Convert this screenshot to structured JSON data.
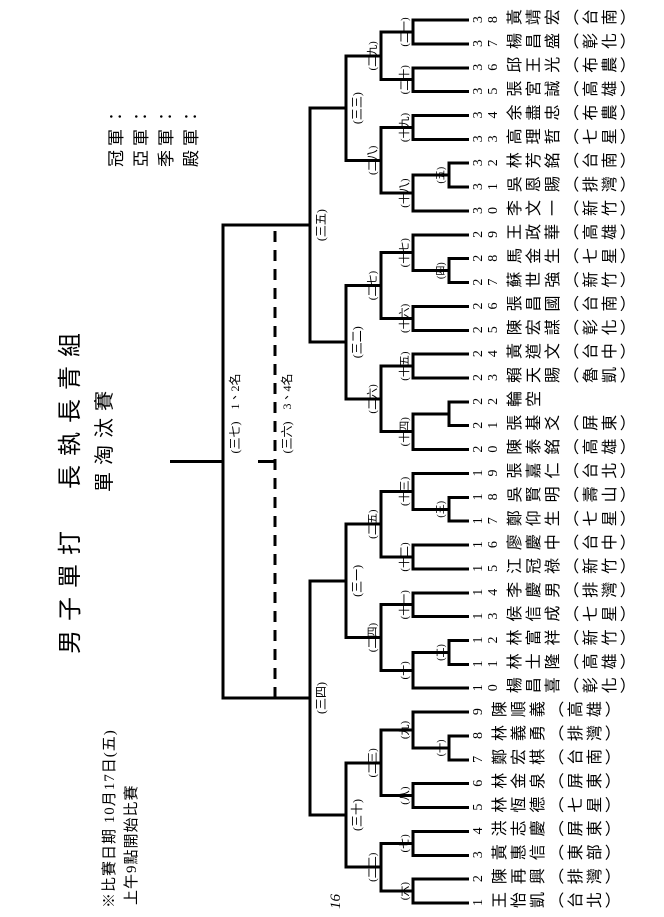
{
  "page": {
    "title": "男子單打　長執長青組",
    "subtitle": "單淘汰賽",
    "note_line1": "※比賽日期 10月17日(五)",
    "note_line2": "上午9點開始比賽",
    "page_number": "16",
    "results": [
      "冠軍：",
      "亞軍：",
      "季軍：",
      "殿軍："
    ]
  },
  "players": [
    {
      "no": 1,
      "name": "王怡凱",
      "club": "（台北）"
    },
    {
      "no": 2,
      "name": "陳再興",
      "club": "（排灣）"
    },
    {
      "no": 3,
      "name": "黃惠信",
      "club": "（東部）"
    },
    {
      "no": 4,
      "name": "洪志慶",
      "club": "（屏東）"
    },
    {
      "no": 5,
      "name": "林恆德",
      "club": "（七星）"
    },
    {
      "no": 6,
      "name": "林金泉",
      "club": "（屏東）"
    },
    {
      "no": 7,
      "name": "鄭宏棋",
      "club": "（台南）"
    },
    {
      "no": 8,
      "name": "林義勇",
      "club": "（排灣）"
    },
    {
      "no": 9,
      "name": "陳順義",
      "club": "（高雄）"
    },
    {
      "no": 10,
      "name": "楊昌喜",
      "club": "（彰化）"
    },
    {
      "no": 11,
      "name": "林士隆",
      "club": "（高雄）"
    },
    {
      "no": 12,
      "name": "林富祥",
      "club": "（新竹）"
    },
    {
      "no": 13,
      "name": "侯信成",
      "club": "（七星）"
    },
    {
      "no": 14,
      "name": "李慶男",
      "club": "（排灣）"
    },
    {
      "no": 15,
      "name": "江冠祿",
      "club": "（新竹）"
    },
    {
      "no": 16,
      "name": "廖慶中",
      "club": "（台中）"
    },
    {
      "no": 17,
      "name": "鄭仰生",
      "club": "（七星）"
    },
    {
      "no": 18,
      "name": "吳賢明",
      "club": "（壽山）"
    },
    {
      "no": 19,
      "name": "張嘉仁",
      "club": "（台北）"
    },
    {
      "no": 20,
      "name": "陳泰銘",
      "club": "（高雄）"
    },
    {
      "no": 21,
      "name": "張基爻",
      "club": "（屏東）"
    },
    {
      "no": 22,
      "name": "輪空",
      "club": ""
    },
    {
      "no": 23,
      "name": "賴天賜",
      "club": "（魯凱）"
    },
    {
      "no": 24,
      "name": "黃道文",
      "club": "（台中）"
    },
    {
      "no": 25,
      "name": "陳宏謀",
      "club": "（彰化）"
    },
    {
      "no": 26,
      "name": "張昌國",
      "club": "（台南）"
    },
    {
      "no": 27,
      "name": "蘇世強",
      "club": "（新竹）"
    },
    {
      "no": 28,
      "name": "馬金生",
      "club": "（七星）"
    },
    {
      "no": 29,
      "name": "王政華",
      "club": "（高雄）"
    },
    {
      "no": 30,
      "name": "李文一",
      "club": "（新竹）"
    },
    {
      "no": 31,
      "name": "吳恩賜",
      "club": "（排灣）"
    },
    {
      "no": 32,
      "name": "林芳銘",
      "club": "（台南）"
    },
    {
      "no": 33,
      "name": "高理哲",
      "club": "（七星）"
    },
    {
      "no": 34,
      "name": "余盡忠",
      "club": "（布農）"
    },
    {
      "no": 35,
      "name": "張宮誠",
      "club": "（高雄）"
    },
    {
      "no": 36,
      "name": "邱王光",
      "club": "（布農）"
    },
    {
      "no": 37,
      "name": "楊昌盛",
      "club": "（彰化）"
    },
    {
      "no": 38,
      "name": "黃靖宏",
      "club": "（台南）"
    }
  ],
  "bracket": {
    "rounds": [
      {
        "level": "prelim",
        "matches": [
          {
            "id": "m1",
            "label": "(一)",
            "a": "p7",
            "b": "p8"
          },
          {
            "id": "m2",
            "label": "(二)",
            "a": "p11",
            "b": "p12"
          },
          {
            "id": "m3",
            "label": "(三)",
            "a": "p17",
            "b": "p18"
          },
          {
            "id": "m4",
            "label": "(四)",
            "a": "p27",
            "b": "p28"
          },
          {
            "id": "m5",
            "label": "(五)",
            "a": "p31",
            "b": "p32"
          },
          {
            "id": "mb",
            "label": "",
            "a": "p21",
            "b": "p22"
          }
        ]
      },
      {
        "level": "r32",
        "matches": [
          {
            "id": "m6",
            "label": "(六)",
            "a": "p1",
            "b": "p2"
          },
          {
            "id": "m7",
            "label": "(七)",
            "a": "p3",
            "b": "p4"
          },
          {
            "id": "m8",
            "label": "(八)",
            "a": "p5",
            "b": "p6"
          },
          {
            "id": "m9",
            "label": "(九)",
            "a": "m1",
            "b": "p9"
          },
          {
            "id": "m10",
            "label": "(十)",
            "a": "p10",
            "b": "m2"
          },
          {
            "id": "m11",
            "label": "(十一)",
            "a": "p13",
            "b": "p14"
          },
          {
            "id": "m12",
            "label": "(十二)",
            "a": "p15",
            "b": "p16"
          },
          {
            "id": "m13",
            "label": "(十三)",
            "a": "m3",
            "b": "p19"
          },
          {
            "id": "m14",
            "label": "(十四)",
            "a": "p20",
            "b": "mb"
          },
          {
            "id": "m15",
            "label": "(十五)",
            "a": "p23",
            "b": "p24"
          },
          {
            "id": "m16",
            "label": "(十六)",
            "a": "p25",
            "b": "p26"
          },
          {
            "id": "m17",
            "label": "(十七)",
            "a": "m4",
            "b": "p29"
          },
          {
            "id": "m18",
            "label": "(十八)",
            "a": "p30",
            "b": "m5"
          },
          {
            "id": "m19",
            "label": "(十九)",
            "a": "p33",
            "b": "p34"
          },
          {
            "id": "m20",
            "label": "(二十)",
            "a": "p35",
            "b": "p36"
          },
          {
            "id": "m21",
            "label": "(二一)",
            "a": "p37",
            "b": "p38"
          }
        ]
      },
      {
        "level": "r16",
        "matches": [
          {
            "id": "m22",
            "label": "(二二)",
            "a": "m6",
            "b": "m7"
          },
          {
            "id": "m23",
            "label": "(二三)",
            "a": "m8",
            "b": "m9"
          },
          {
            "id": "m24",
            "label": "(二四)",
            "a": "m10",
            "b": "m11"
          },
          {
            "id": "m25",
            "label": "(二五)",
            "a": "m12",
            "b": "m13"
          },
          {
            "id": "m26",
            "label": "(二六)",
            "a": "m14",
            "b": "m15"
          },
          {
            "id": "m27",
            "label": "(二七)",
            "a": "m16",
            "b": "m17"
          },
          {
            "id": "m28",
            "label": "(二八)",
            "a": "m18",
            "b": "m19"
          },
          {
            "id": "m29",
            "label": "(二九)",
            "a": "m20",
            "b": "m21"
          }
        ]
      },
      {
        "level": "qf",
        "matches": [
          {
            "id": "m30",
            "label": "(三十)",
            "a": "m22",
            "b": "m23"
          },
          {
            "id": "m31",
            "label": "(三一)",
            "a": "m24",
            "b": "m25"
          },
          {
            "id": "m32",
            "label": "(三二)",
            "a": "m26",
            "b": "m27"
          },
          {
            "id": "m33",
            "label": "(三三)",
            "a": "m28",
            "b": "m29"
          }
        ]
      },
      {
        "level": "sf",
        "matches": [
          {
            "id": "m34",
            "label": "(三四)",
            "a": "m30",
            "b": "m31"
          },
          {
            "id": "m35",
            "label": "(三五)",
            "a": "m32",
            "b": "m33"
          }
        ]
      }
    ],
    "final": {
      "label": "(三七)",
      "rank_note": "1、2名"
    },
    "third_place": {
      "label": "(三六)",
      "rank_note": "3、4名"
    }
  }
}
